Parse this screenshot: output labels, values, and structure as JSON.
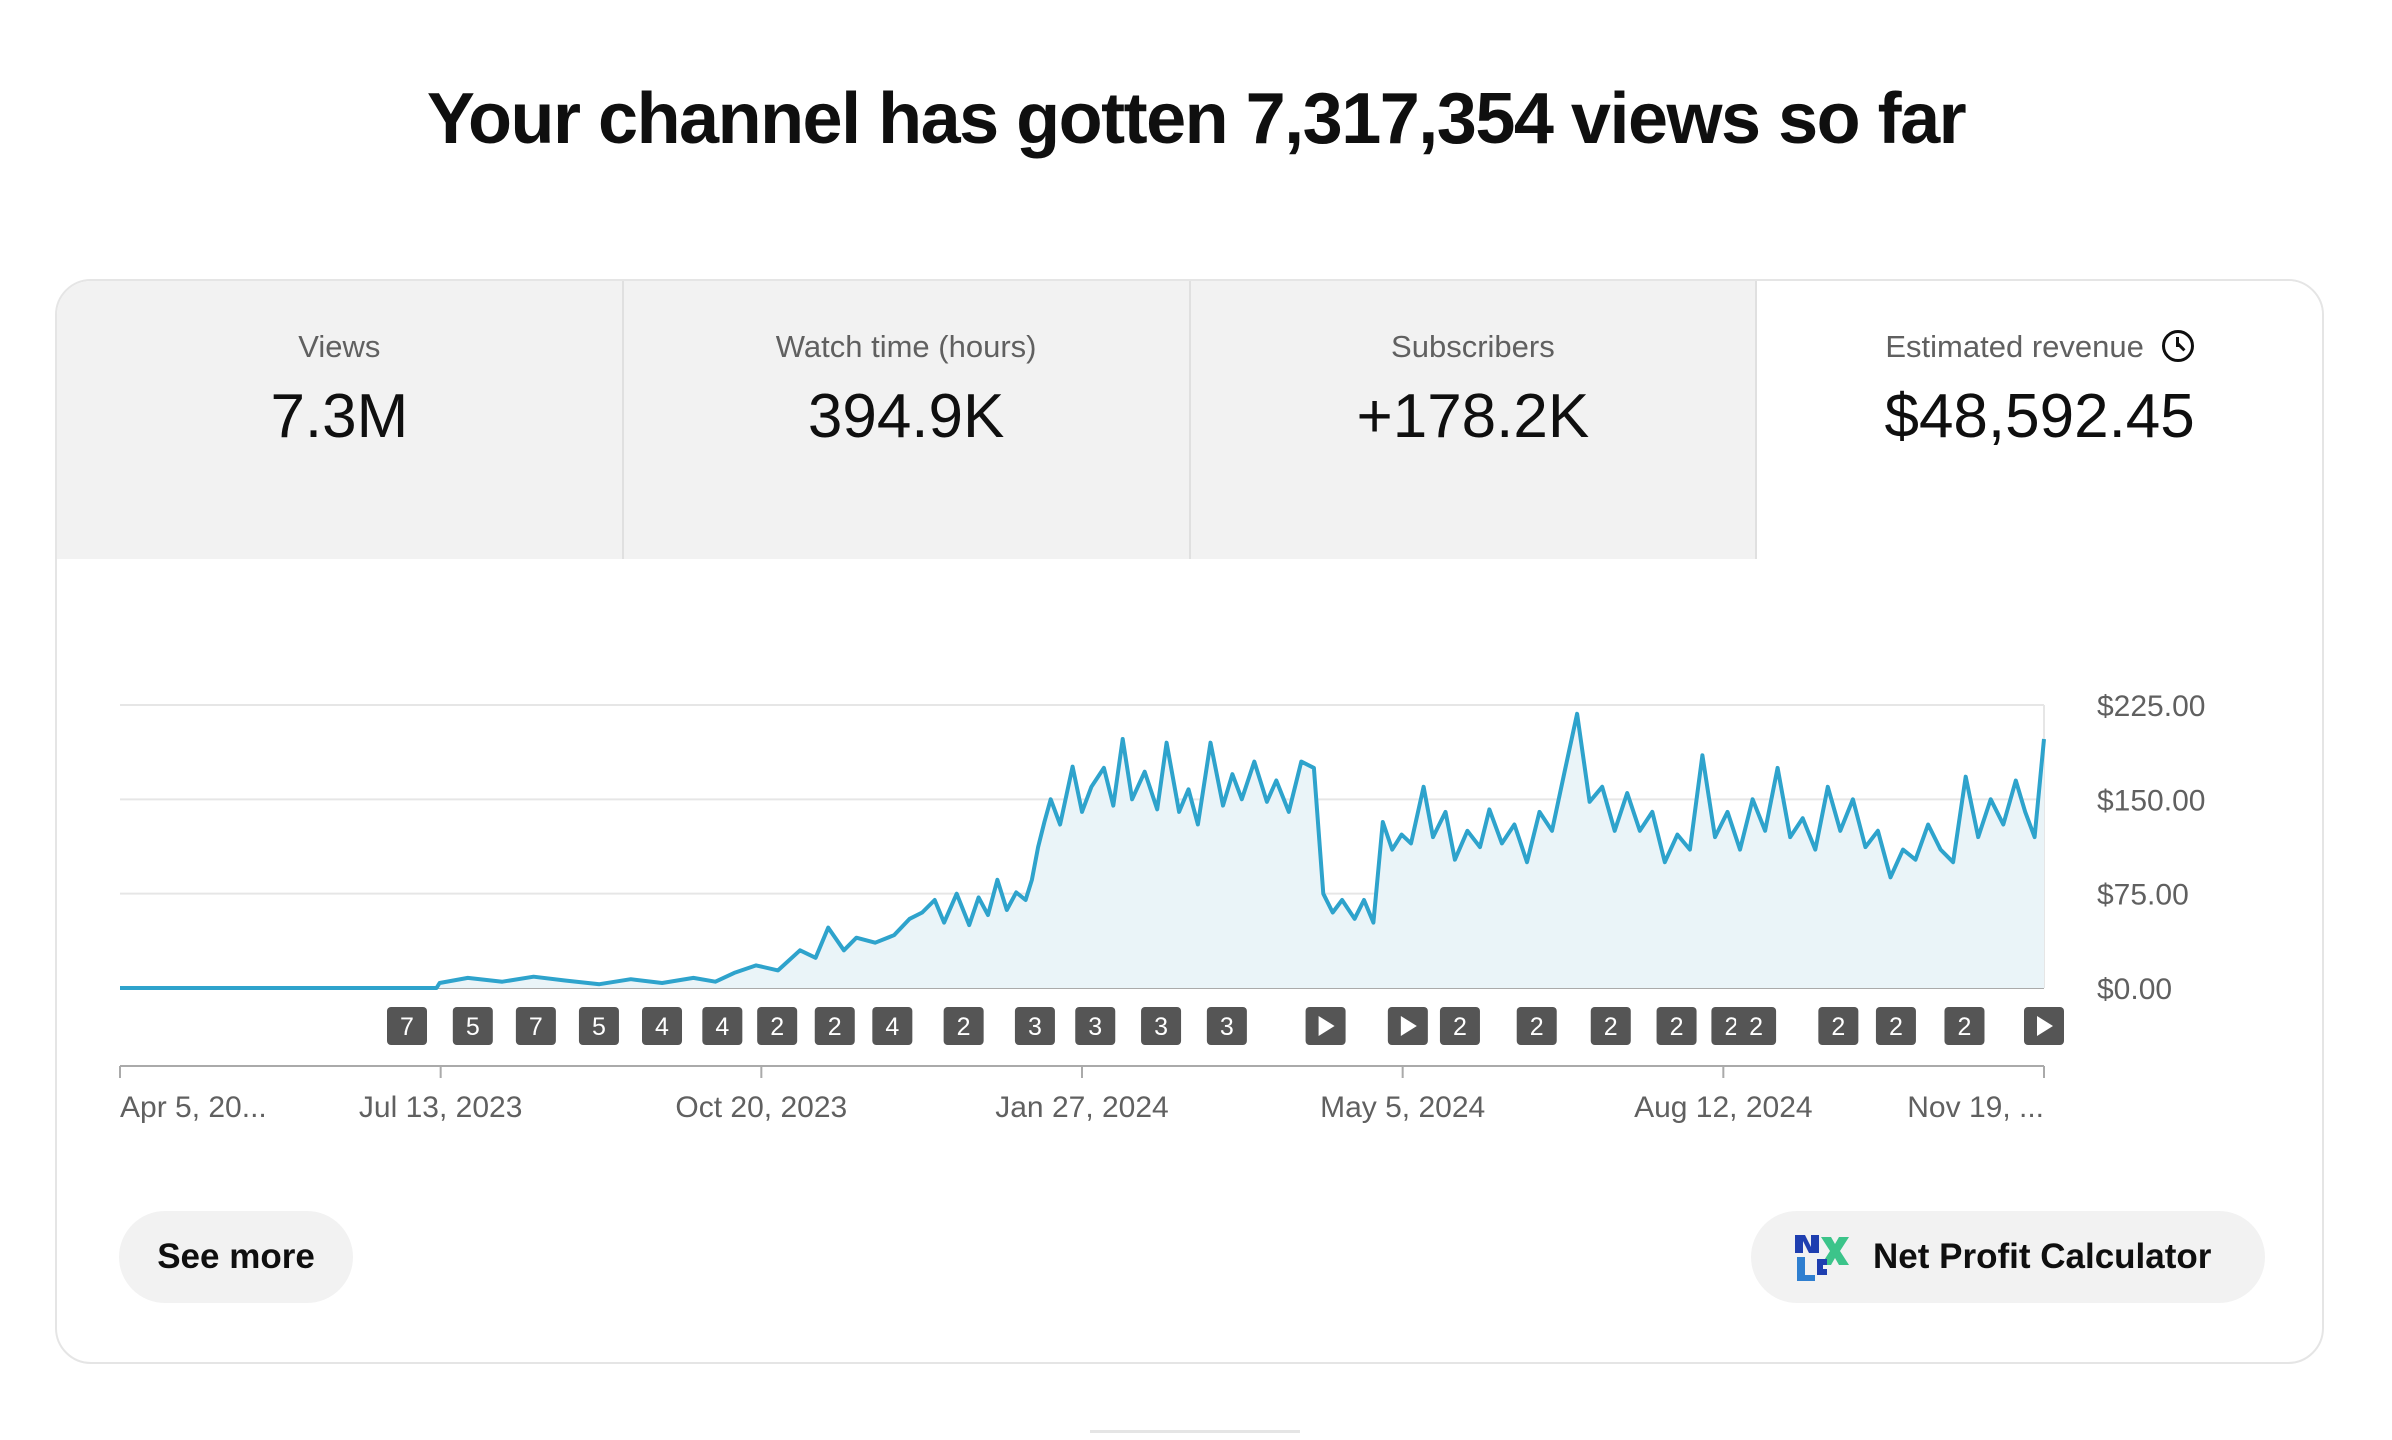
{
  "headline": "Your channel has gotten 7,317,354 views so far",
  "tabs": [
    {
      "label": "Views",
      "value": "7.3M",
      "active": false
    },
    {
      "label": "Watch time (hours)",
      "value": "394.9K",
      "active": false
    },
    {
      "label": "Subscribers",
      "value": "+178.2K",
      "active": false
    },
    {
      "label": "Estimated revenue",
      "value": "$48,592.45",
      "active": true,
      "icon": "clock-icon"
    }
  ],
  "chart_data": {
    "type": "area",
    "metric": "Estimated revenue",
    "x_tick_labels": [
      "Apr 5, 20...",
      "Jul 13, 2023",
      "Oct 20, 2023",
      "Jan 27, 2024",
      "May 5, 2024",
      "Aug 12, 2024",
      "Nov 19, ..."
    ],
    "y_tick_labels": [
      "$225.00",
      "$150.00",
      "$75.00",
      "$0.00"
    ],
    "ylim": [
      0,
      225
    ],
    "grid": true,
    "line_color": "#2ea3cc",
    "fill_color": "#eaf4f8",
    "x_start": "2023-04-05",
    "x_end": "2024-12-09",
    "series": [
      {
        "points": [
          [
            "2023-04-05",
            0
          ],
          [
            "2023-07-15",
            0
          ],
          [
            "2023-07-16",
            4
          ],
          [
            "2023-07-25",
            8
          ],
          [
            "2023-08-05",
            5
          ],
          [
            "2023-08-15",
            9
          ],
          [
            "2023-08-25",
            6
          ],
          [
            "2023-09-05",
            3
          ],
          [
            "2023-09-15",
            7
          ],
          [
            "2023-09-25",
            4
          ],
          [
            "2023-10-05",
            8
          ],
          [
            "2023-10-12",
            5
          ],
          [
            "2023-10-18",
            12
          ],
          [
            "2023-10-25",
            18
          ],
          [
            "2023-11-01",
            14
          ],
          [
            "2023-11-08",
            30
          ],
          [
            "2023-11-13",
            24
          ],
          [
            "2023-11-17",
            48
          ],
          [
            "2023-11-22",
            30
          ],
          [
            "2023-11-26",
            40
          ],
          [
            "2023-12-02",
            36
          ],
          [
            "2023-12-08",
            42
          ],
          [
            "2023-12-13",
            55
          ],
          [
            "2023-12-17",
            60
          ],
          [
            "2023-12-21",
            70
          ],
          [
            "2023-12-24",
            52
          ],
          [
            "2023-12-28",
            75
          ],
          [
            "2024-01-01",
            50
          ],
          [
            "2024-01-04",
            72
          ],
          [
            "2024-01-07",
            58
          ],
          [
            "2024-01-10",
            86
          ],
          [
            "2024-01-13",
            62
          ],
          [
            "2024-01-16",
            76
          ],
          [
            "2024-01-19",
            70
          ],
          [
            "2024-01-21",
            86
          ],
          [
            "2024-01-23",
            112
          ],
          [
            "2024-01-25",
            132
          ],
          [
            "2024-01-27",
            150
          ],
          [
            "2024-01-30",
            130
          ],
          [
            "2024-02-03",
            176
          ],
          [
            "2024-02-06",
            140
          ],
          [
            "2024-02-09",
            160
          ],
          [
            "2024-02-13",
            175
          ],
          [
            "2024-02-16",
            145
          ],
          [
            "2024-02-19",
            198
          ],
          [
            "2024-02-22",
            150
          ],
          [
            "2024-02-26",
            172
          ],
          [
            "2024-03-01",
            142
          ],
          [
            "2024-03-04",
            195
          ],
          [
            "2024-03-08",
            140
          ],
          [
            "2024-03-11",
            158
          ],
          [
            "2024-03-14",
            130
          ],
          [
            "2024-03-18",
            195
          ],
          [
            "2024-03-22",
            145
          ],
          [
            "2024-03-25",
            170
          ],
          [
            "2024-03-28",
            150
          ],
          [
            "2024-04-01",
            180
          ],
          [
            "2024-04-05",
            148
          ],
          [
            "2024-04-08",
            165
          ],
          [
            "2024-04-12",
            140
          ],
          [
            "2024-04-16",
            180
          ],
          [
            "2024-04-20",
            175
          ],
          [
            "2024-04-23",
            75
          ],
          [
            "2024-04-26",
            60
          ],
          [
            "2024-04-29",
            70
          ],
          [
            "2024-05-03",
            55
          ],
          [
            "2024-05-06",
            70
          ],
          [
            "2024-05-09",
            52
          ],
          [
            "2024-05-12",
            132
          ],
          [
            "2024-05-15",
            110
          ],
          [
            "2024-05-18",
            122
          ],
          [
            "2024-05-21",
            115
          ],
          [
            "2024-05-25",
            160
          ],
          [
            "2024-05-28",
            120
          ],
          [
            "2024-06-01",
            140
          ],
          [
            "2024-06-04",
            102
          ],
          [
            "2024-06-08",
            125
          ],
          [
            "2024-06-12",
            112
          ],
          [
            "2024-06-15",
            142
          ],
          [
            "2024-06-19",
            115
          ],
          [
            "2024-06-23",
            130
          ],
          [
            "2024-06-27",
            100
          ],
          [
            "2024-07-01",
            140
          ],
          [
            "2024-07-05",
            125
          ],
          [
            "2024-07-09",
            172
          ],
          [
            "2024-07-13",
            218
          ],
          [
            "2024-07-17",
            148
          ],
          [
            "2024-07-21",
            160
          ],
          [
            "2024-07-25",
            125
          ],
          [
            "2024-07-29",
            155
          ],
          [
            "2024-08-02",
            125
          ],
          [
            "2024-08-06",
            140
          ],
          [
            "2024-08-10",
            100
          ],
          [
            "2024-08-14",
            122
          ],
          [
            "2024-08-18",
            110
          ],
          [
            "2024-08-22",
            185
          ],
          [
            "2024-08-26",
            120
          ],
          [
            "2024-08-30",
            140
          ],
          [
            "2024-09-03",
            110
          ],
          [
            "2024-09-07",
            150
          ],
          [
            "2024-09-11",
            125
          ],
          [
            "2024-09-15",
            175
          ],
          [
            "2024-09-19",
            120
          ],
          [
            "2024-09-23",
            135
          ],
          [
            "2024-09-27",
            110
          ],
          [
            "2024-10-01",
            160
          ],
          [
            "2024-10-05",
            125
          ],
          [
            "2024-10-09",
            150
          ],
          [
            "2024-10-13",
            112
          ],
          [
            "2024-10-17",
            125
          ],
          [
            "2024-10-21",
            88
          ],
          [
            "2024-10-25",
            110
          ],
          [
            "2024-10-29",
            102
          ],
          [
            "2024-11-02",
            130
          ],
          [
            "2024-11-06",
            110
          ],
          [
            "2024-11-10",
            100
          ],
          [
            "2024-11-14",
            168
          ],
          [
            "2024-11-18",
            120
          ],
          [
            "2024-11-22",
            150
          ],
          [
            "2024-11-26",
            130
          ],
          [
            "2024-11-30",
            165
          ],
          [
            "2024-12-03",
            140
          ],
          [
            "2024-12-06",
            120
          ],
          [
            "2024-12-09",
            198
          ]
        ]
      }
    ],
    "markers": [
      "7",
      "5",
      "7",
      "5",
      "4",
      "4",
      "2",
      "2",
      "4",
      "2",
      "3",
      "3",
      "3",
      "3",
      "play",
      "play",
      "2",
      "2",
      "2",
      "2",
      "2",
      "2",
      "2",
      "2",
      "2",
      "play"
    ],
    "marker_dates": [
      "2023-06-11",
      "2023-07-05",
      "2023-07-28",
      "2023-08-20",
      "2023-09-12",
      "2023-10-04",
      "2023-10-24",
      "2023-11-14",
      "2023-12-05",
      "2023-12-31",
      "2024-01-26",
      "2024-02-17",
      "2024-03-12",
      "2024-04-05",
      "2024-05-11",
      "2024-06-10",
      "2024-06-29",
      "2024-07-27",
      "2024-08-23",
      "2024-09-16",
      "2024-10-06",
      "2024-10-15",
      "2024-11-14",
      "2024-12-05",
      "2024-12-30",
      "2025-01-28"
    ]
  },
  "buttons": {
    "see_more": "See more",
    "net_profit": "Net Profit Calculator"
  },
  "icons": {
    "revenue_info": "clock-icon",
    "net_profit": "nexlev-logo-icon"
  }
}
